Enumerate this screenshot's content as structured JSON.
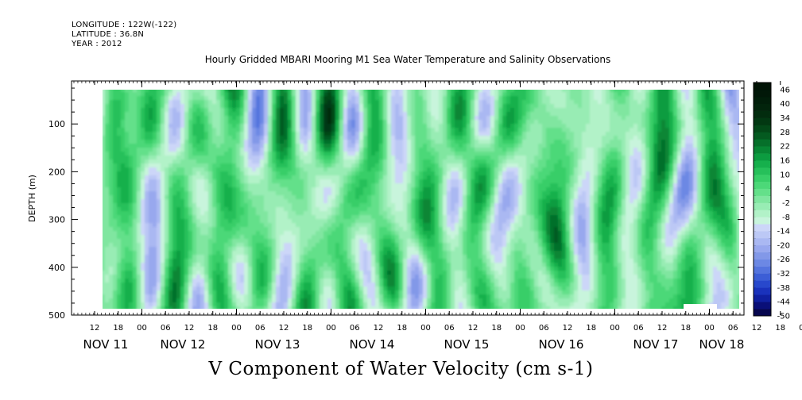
{
  "header": {
    "longitude": "LONGITUDE : 122W(-122)",
    "latitude": "LATITUDE : 36.8N",
    "year": "YEAR : 2012"
  },
  "chart_data": {
    "type": "heatmap",
    "title": "Hourly Gridded MBARI Mooring M1 Sea Water Temperature and Salinity Observations",
    "subtitle": "V Component of Water Velocity (cm s-1)",
    "ylabel": "DEPTH (m)",
    "xlabel": "",
    "ylim": [
      500,
      10
    ],
    "yticks": [
      100,
      200,
      300,
      400,
      500
    ],
    "x_hour_ticks": [
      "12",
      "18",
      "00",
      "06",
      "12",
      "18",
      "00",
      "06",
      "12",
      "18",
      "00",
      "06",
      "12",
      "18",
      "00",
      "06",
      "12",
      "18",
      "00",
      "06",
      "12",
      "18",
      "00",
      "06",
      "12",
      "18",
      "00",
      "06",
      "12",
      "18",
      "00",
      "06"
    ],
    "x_day_labels": [
      "NOV 11",
      "NOV 12",
      "NOV 13",
      "NOV 14",
      "NOV 15",
      "NOV 16",
      "NOV 17",
      "NOV 18"
    ],
    "colorbar": {
      "labels": [
        "46",
        "40",
        "34",
        "28",
        "22",
        "16",
        "10",
        "4",
        "-2",
        "-8",
        "-14",
        "-20",
        "-26",
        "-32",
        "-38",
        "-44",
        "-50"
      ],
      "min": -50,
      "max": 49,
      "step": 3,
      "colors_low_to_high": [
        "#06064e",
        "#0a0f78",
        "#1020a0",
        "#1a32bc",
        "#2848cc",
        "#3c5ed6",
        "#5474de",
        "#6c88e4",
        "#8298e8",
        "#98a8ee",
        "#aab8f2",
        "#bcc8f5",
        "#ccd6f8",
        "#c8f4dc",
        "#b2f2c8",
        "#98ecb4",
        "#80e6a0",
        "#64e08a",
        "#4cd878",
        "#38ce68",
        "#26c05a",
        "#16b04c",
        "#0c9c40",
        "#088634",
        "#06702a",
        "#045a20",
        "#034818",
        "#023812",
        "#022c0e",
        "#02240c",
        "#011e0a",
        "#011808",
        "#011406"
      ]
    },
    "summary": "Meridional velocity varies between about -30 and +30 cm s-1 from surface to 500 m, with vertical bands of positive (green) and negative (blue) flow alternating on a roughly semi-diurnal to daily time scale."
  }
}
